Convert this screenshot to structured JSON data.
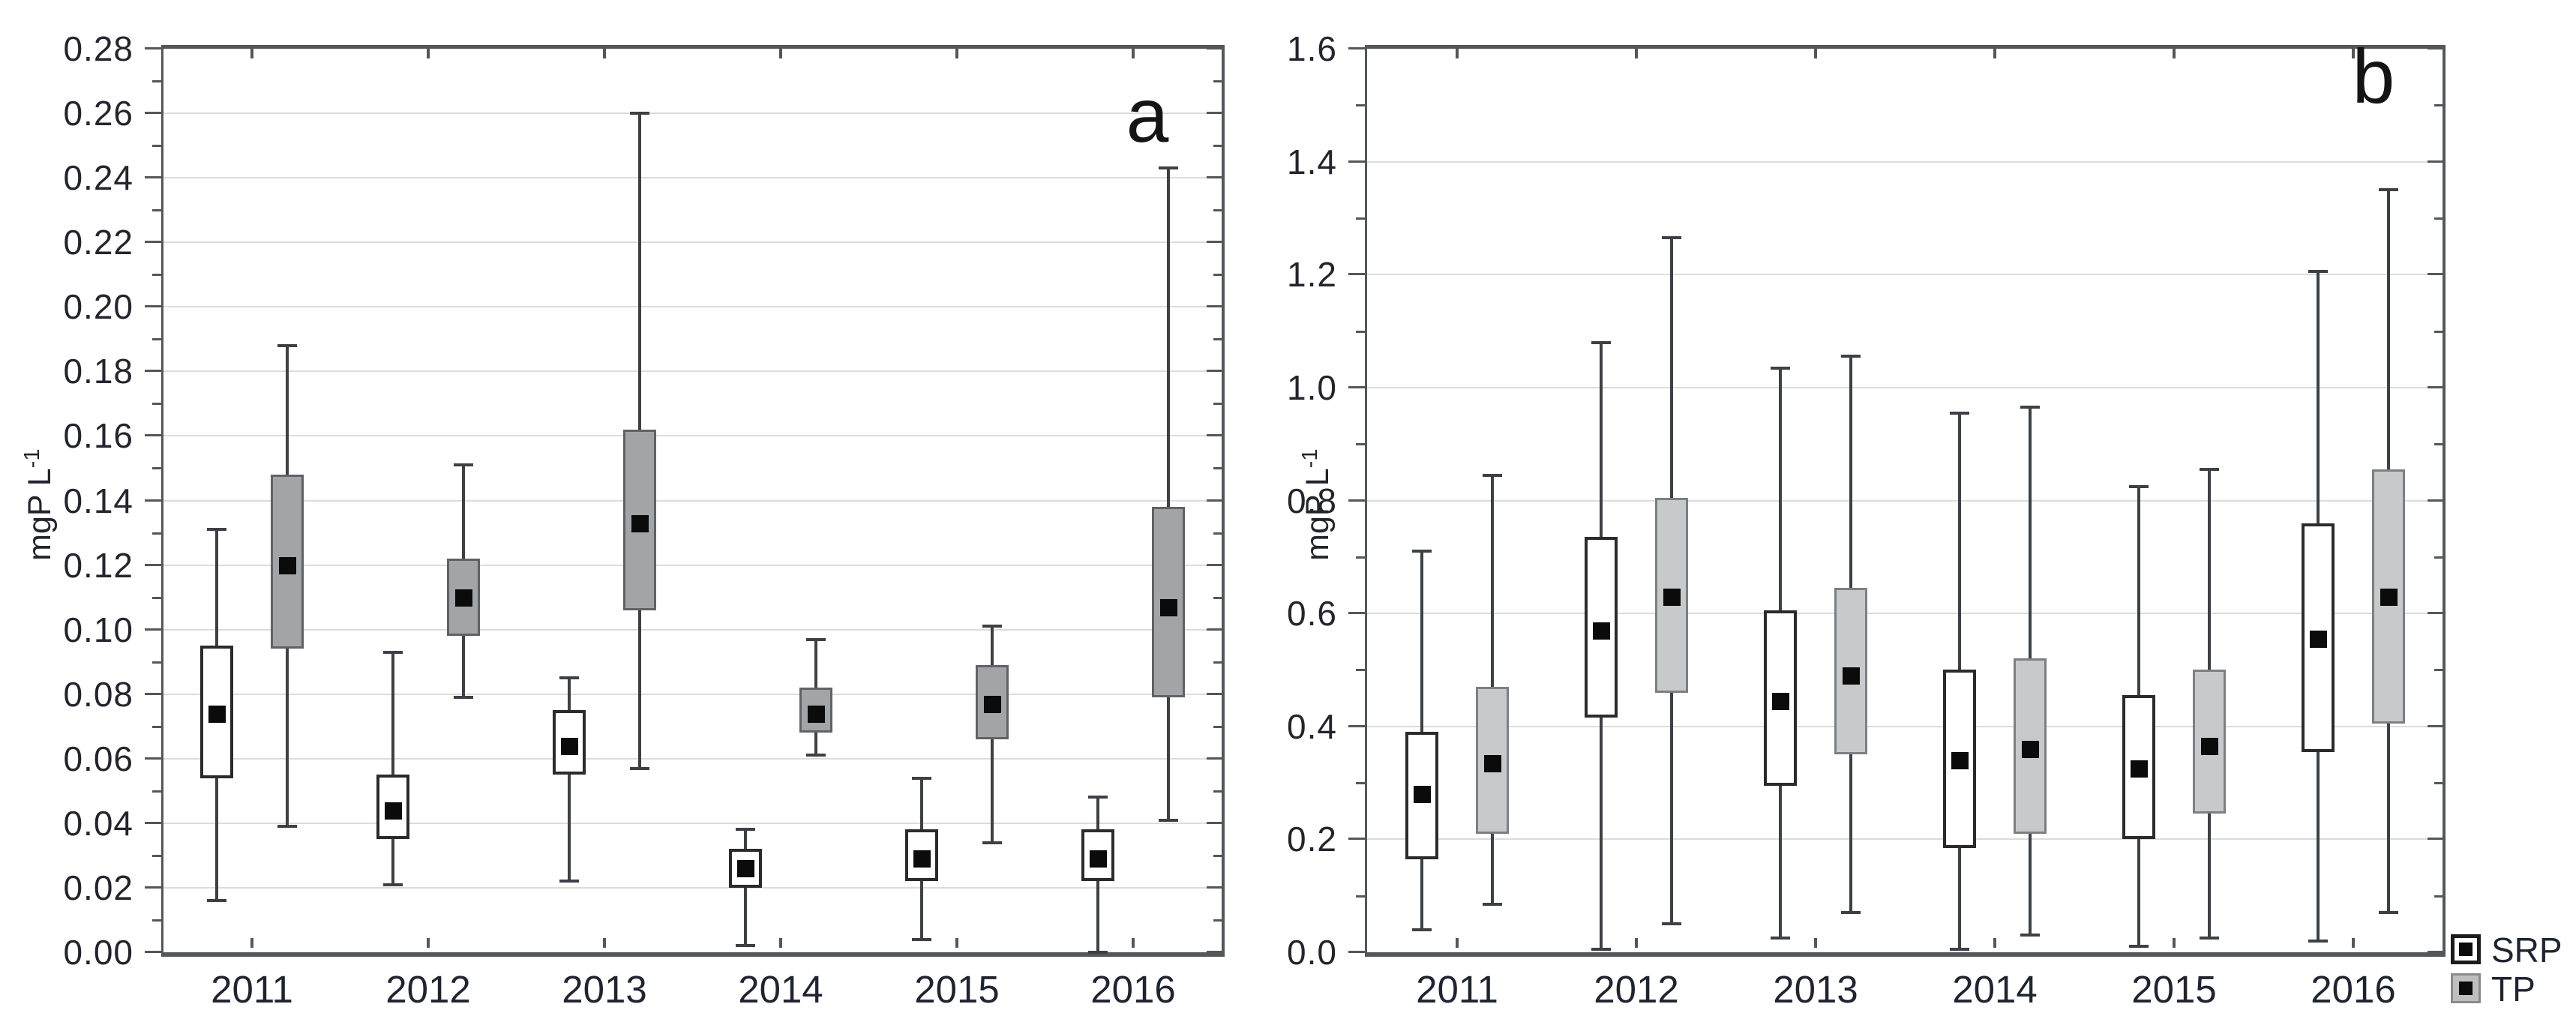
{
  "figure": {
    "background": "#ffffff",
    "unit_label": {
      "text": "mgP L",
      "sup": "-1"
    }
  },
  "colors": {
    "background": "#ffffff",
    "grid": "#dcdcdc",
    "spine": "#53575c",
    "whisker": "#3d4045",
    "median": "#0b0b0b",
    "tick_label": "#23242e",
    "year_label": "#1f2430",
    "panel_letter": "#141414"
  },
  "legend": {
    "position": "bottom-right-outside",
    "items": [
      {
        "label": "SRP",
        "fill": "#ffffff",
        "edge": "#1c1c1c",
        "edge_width": 5,
        "marker": "#0b0b0b"
      },
      {
        "label": "TP",
        "fill": "#bfbfbf",
        "edge": "#8a8a8a",
        "edge_width": 3,
        "marker": "#0b0b0b"
      }
    ]
  },
  "chart_data": [
    {
      "type": "box",
      "panel_label": "a",
      "ylabel": "mgP L^-1",
      "ylim": [
        0,
        0.28
      ],
      "ytick_step": 0.02,
      "ytick_minor_step": 0.01,
      "ytick_labels": [
        "0.00",
        "0.02",
        "0.04",
        "0.06",
        "0.08",
        "0.10",
        "0.12",
        "0.14",
        "0.16",
        "0.18",
        "0.20",
        "0.22",
        "0.24",
        "0.26",
        "0.28"
      ],
      "grid": "horizontal",
      "categories": [
        "2011",
        "2012",
        "2013",
        "2014",
        "2015",
        "2016"
      ],
      "series": [
        {
          "name": "SRP",
          "fill": "#ffffff",
          "edge": "#2b2b2b",
          "edge_width": 4,
          "boxes": [
            {
              "min": 0.016,
              "q1": 0.054,
              "med": 0.074,
              "q3": 0.095,
              "max": 0.131
            },
            {
              "min": 0.021,
              "q1": 0.035,
              "med": 0.044,
              "q3": 0.055,
              "max": 0.093
            },
            {
              "min": 0.022,
              "q1": 0.055,
              "med": 0.064,
              "q3": 0.075,
              "max": 0.085
            },
            {
              "min": 0.002,
              "q1": 0.02,
              "med": 0.026,
              "q3": 0.032,
              "max": 0.038
            },
            {
              "min": 0.004,
              "q1": 0.022,
              "med": 0.029,
              "q3": 0.038,
              "max": 0.054
            },
            {
              "min": 0.0,
              "q1": 0.022,
              "med": 0.029,
              "q3": 0.038,
              "max": 0.048
            }
          ]
        },
        {
          "name": "TP",
          "fill": "#a2a4a6",
          "edge": "#5f6266",
          "edge_width": 3,
          "boxes": [
            {
              "min": 0.039,
              "q1": 0.094,
              "med": 0.12,
              "q3": 0.148,
              "max": 0.188
            },
            {
              "min": 0.079,
              "q1": 0.098,
              "med": 0.11,
              "q3": 0.122,
              "max": 0.151
            },
            {
              "min": 0.057,
              "q1": 0.106,
              "med": 0.133,
              "q3": 0.162,
              "max": 0.26
            },
            {
              "min": 0.061,
              "q1": 0.068,
              "med": 0.074,
              "q3": 0.082,
              "max": 0.097
            },
            {
              "min": 0.034,
              "q1": 0.066,
              "med": 0.077,
              "q3": 0.089,
              "max": 0.101
            },
            {
              "min": 0.041,
              "q1": 0.079,
              "med": 0.107,
              "q3": 0.138,
              "max": 0.243
            }
          ]
        }
      ]
    },
    {
      "type": "box",
      "panel_label": "b",
      "ylabel": "mgP L^-1",
      "ylim": [
        0,
        1.6
      ],
      "ytick_step": 0.2,
      "ytick_minor_step": 0.1,
      "ytick_labels": [
        "0.0",
        "0.2",
        "0.4",
        "0.6",
        "0.8",
        "1.0",
        "1.2",
        "1.4",
        "1.6"
      ],
      "grid": "horizontal",
      "categories": [
        "2011",
        "2012",
        "2013",
        "2014",
        "2015",
        "2016"
      ],
      "series": [
        {
          "name": "SRP",
          "fill": "#ffffff",
          "edge": "#2b2b2b",
          "edge_width": 4,
          "boxes": [
            {
              "min": 0.04,
              "q1": 0.165,
              "med": 0.28,
              "q3": 0.39,
              "max": 0.71
            },
            {
              "min": 0.005,
              "q1": 0.415,
              "med": 0.57,
              "q3": 0.735,
              "max": 1.08
            },
            {
              "min": 0.025,
              "q1": 0.295,
              "med": 0.445,
              "q3": 0.605,
              "max": 1.035
            },
            {
              "min": 0.005,
              "q1": 0.185,
              "med": 0.34,
              "q3": 0.5,
              "max": 0.955
            },
            {
              "min": 0.01,
              "q1": 0.2,
              "med": 0.325,
              "q3": 0.455,
              "max": 0.825
            },
            {
              "min": 0.02,
              "q1": 0.355,
              "med": 0.555,
              "q3": 0.76,
              "max": 1.205
            }
          ]
        },
        {
          "name": "TP",
          "fill": "#c8c9ca",
          "edge": "#7c7f83",
          "edge_width": 3,
          "boxes": [
            {
              "min": 0.085,
              "q1": 0.21,
              "med": 0.335,
              "q3": 0.47,
              "max": 0.845
            },
            {
              "min": 0.05,
              "q1": 0.46,
              "med": 0.63,
              "q3": 0.805,
              "max": 1.265
            },
            {
              "min": 0.07,
              "q1": 0.35,
              "med": 0.49,
              "q3": 0.645,
              "max": 1.055
            },
            {
              "min": 0.03,
              "q1": 0.21,
              "med": 0.36,
              "q3": 0.52,
              "max": 0.965
            },
            {
              "min": 0.025,
              "q1": 0.245,
              "med": 0.365,
              "q3": 0.5,
              "max": 0.855
            },
            {
              "min": 0.07,
              "q1": 0.405,
              "med": 0.63,
              "q3": 0.855,
              "max": 1.35
            }
          ]
        }
      ]
    }
  ]
}
